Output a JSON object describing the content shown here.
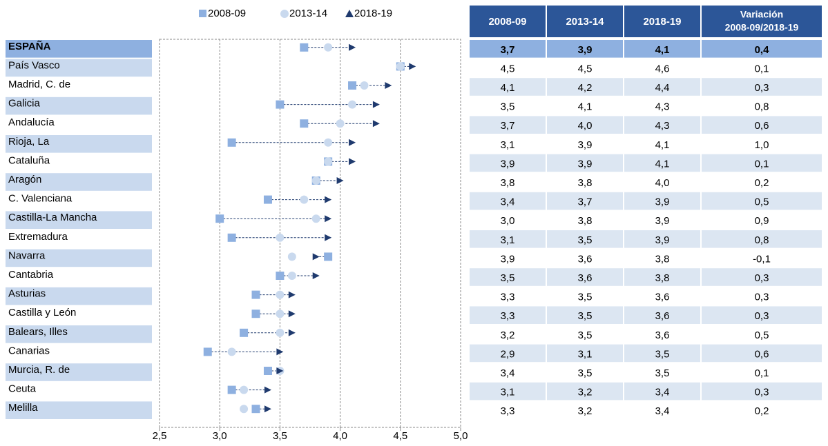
{
  "chart_data": {
    "type": "dot-range",
    "categories": [
      "ESPAÑA",
      "País Vasco",
      "Madrid, C. de",
      "Galicia",
      "Andalucía",
      "Rioja, La",
      "Cataluña",
      "Aragón",
      "C. Valenciana",
      "Castilla-La Mancha",
      "Extremadura",
      "Navarra",
      "Cantabria",
      "Asturias",
      "Castilla y León",
      "Balears, Illes",
      "Canarias",
      "Murcia, R. de",
      "Ceuta",
      "Melilla"
    ],
    "series": [
      {
        "name": "2008-09",
        "color": "#8eb0e0",
        "marker": "square",
        "values": [
          3.7,
          4.5,
          4.1,
          3.5,
          3.7,
          3.1,
          3.9,
          3.8,
          3.4,
          3.0,
          3.1,
          3.9,
          3.5,
          3.3,
          3.3,
          3.2,
          2.9,
          3.4,
          3.1,
          3.3
        ],
        "value_labels": [
          "3,7",
          "4,5",
          "4,1",
          "3,5",
          "3,7",
          "3,1",
          "3,9",
          "3,8",
          "3,4",
          "3,0",
          "3,1",
          "3,9",
          "3,5",
          "3,3",
          "3,3",
          "3,2",
          "2,9",
          "3,4",
          "3,1",
          "3,3"
        ]
      },
      {
        "name": "2013-14",
        "color": "#c9d9ee",
        "marker": "circle",
        "values": [
          3.9,
          4.5,
          4.2,
          4.1,
          4.0,
          3.9,
          3.9,
          3.8,
          3.7,
          3.8,
          3.5,
          3.6,
          3.6,
          3.5,
          3.5,
          3.5,
          3.1,
          3.5,
          3.2,
          3.2
        ],
        "value_labels": [
          "3,9",
          "4,5",
          "4,2",
          "4,1",
          "4,0",
          "3,9",
          "3,9",
          "3,8",
          "3,7",
          "3,8",
          "3,5",
          "3,6",
          "3,6",
          "3,5",
          "3,5",
          "3,5",
          "3,1",
          "3,5",
          "3,2",
          "3,2"
        ]
      },
      {
        "name": "2018-19",
        "color": "#1f3a6e",
        "marker": "triangle",
        "values": [
          4.1,
          4.6,
          4.4,
          4.3,
          4.3,
          4.1,
          4.1,
          4.0,
          3.9,
          3.9,
          3.9,
          3.8,
          3.8,
          3.6,
          3.6,
          3.6,
          3.5,
          3.5,
          3.4,
          3.4
        ],
        "value_labels": [
          "4,1",
          "4,6",
          "4,4",
          "4,3",
          "4,3",
          "4,1",
          "4,1",
          "4,0",
          "3,9",
          "3,9",
          "3,9",
          "3,8",
          "3,8",
          "3,6",
          "3,6",
          "3,6",
          "3,5",
          "3,5",
          "3,4",
          "3,4"
        ]
      }
    ],
    "xlim": [
      2.5,
      5.0
    ],
    "xticks": [
      {
        "value": 2.5,
        "label": "2,5"
      },
      {
        "value": 3.0,
        "label": "3,0"
      },
      {
        "value": 3.5,
        "label": "3,5"
      },
      {
        "value": 4.0,
        "label": "4,0"
      },
      {
        "value": 4.5,
        "label": "4,5"
      },
      {
        "value": 5.0,
        "label": "5,0"
      }
    ],
    "grid": true,
    "table": {
      "variation_header": [
        "Variación",
        "2008-09/2018-19"
      ],
      "variation": [
        "0,4",
        "0,1",
        "0,3",
        "0,8",
        "0,6",
        "1,0",
        "0,1",
        "0,2",
        "0,5",
        "0,9",
        "0,8",
        "-0,1",
        "0,3",
        "0,3",
        "0,3",
        "0,5",
        "0,6",
        "0,1",
        "0,3",
        "0,2"
      ]
    }
  }
}
